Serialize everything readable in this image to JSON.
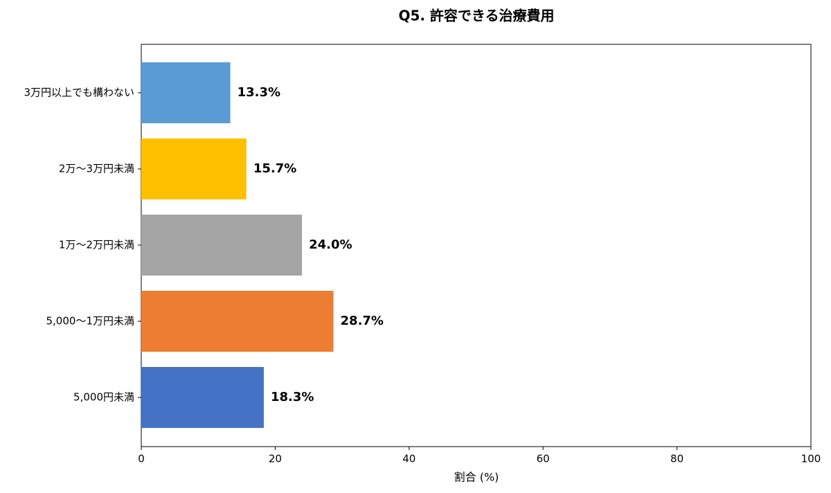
{
  "chart_data": {
    "type": "bar",
    "orientation": "horizontal",
    "title": "Q5. 許容できる治療費用",
    "x_label": "割合 (%)",
    "categories": [
      "3万円以上でも構わない",
      "2万〜3万円未満",
      "1万〜2万円未満",
      "5,000〜1万円未満",
      "5,000円未満"
    ],
    "values": [
      13.3,
      15.7,
      24,
      28.7,
      18.3
    ],
    "value_labels": [
      "13.3%",
      "15.7%",
      "24.0%",
      "28.7%",
      "18.3%"
    ],
    "colors": [
      "#5b9bd5",
      "#ffc000",
      "#a5a5a5",
      "#ed7d31",
      "#4472c4"
    ],
    "xlim": [
      0,
      100
    ],
    "xticks": [
      0,
      20,
      40,
      60,
      80,
      100
    ],
    "grid": false
  }
}
